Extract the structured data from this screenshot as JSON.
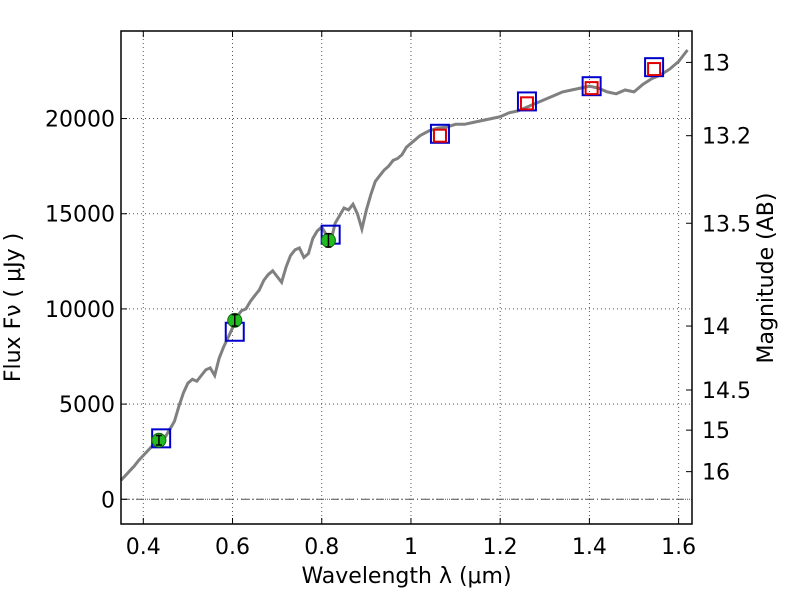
{
  "chart_data": {
    "type": "scatter",
    "xlabel": "Wavelength  λ (μm)",
    "ylabel": "Flux  Fν  ( μJy )",
    "y2label": "Magnitude (AB)",
    "xlim": [
      0.35,
      1.63
    ],
    "ylim": [
      -1300,
      24600
    ],
    "grid": true,
    "x_ticks": [
      {
        "value": 0.4,
        "label": "0.4"
      },
      {
        "value": 0.6,
        "label": "0.6"
      },
      {
        "value": 0.8,
        "label": "0.8"
      },
      {
        "value": 1.0,
        "label": "1"
      },
      {
        "value": 1.2,
        "label": "1.2"
      },
      {
        "value": 1.4,
        "label": "1.4"
      },
      {
        "value": 1.6,
        "label": "1.6"
      }
    ],
    "y_ticks": [
      {
        "value": 0,
        "label": "0"
      },
      {
        "value": 5000,
        "label": "5000"
      },
      {
        "value": 10000,
        "label": "10000"
      },
      {
        "value": 15000,
        "label": "15000"
      },
      {
        "value": 20000,
        "label": "20000"
      }
    ],
    "y2_ticks": [
      {
        "flux": 22950,
        "label": "13"
      },
      {
        "flux": 19100,
        "label": "13.2"
      },
      {
        "flux": 14500,
        "label": "13.5"
      },
      {
        "flux": 9100,
        "label": "14"
      },
      {
        "flux": 5740,
        "label": "14.5"
      },
      {
        "flux": 3630,
        "label": "15"
      },
      {
        "flux": 1450,
        "label": "16"
      }
    ],
    "zero_line": 0,
    "colors": {
      "spectrum": "#808080",
      "model_square": "#0000cc",
      "upper_square": "#e00000",
      "observed_point": "#22bb22",
      "grid": "#555555",
      "zero_line": "#555555"
    },
    "spectrum": {
      "x": [
        0.35,
        0.36,
        0.37,
        0.38,
        0.39,
        0.4,
        0.41,
        0.42,
        0.43,
        0.44,
        0.45,
        0.46,
        0.47,
        0.48,
        0.49,
        0.5,
        0.51,
        0.52,
        0.53,
        0.54,
        0.55,
        0.56,
        0.57,
        0.58,
        0.59,
        0.6,
        0.61,
        0.62,
        0.63,
        0.64,
        0.65,
        0.66,
        0.67,
        0.68,
        0.69,
        0.7,
        0.71,
        0.72,
        0.73,
        0.74,
        0.75,
        0.76,
        0.77,
        0.78,
        0.79,
        0.8,
        0.81,
        0.82,
        0.83,
        0.84,
        0.85,
        0.86,
        0.87,
        0.88,
        0.89,
        0.9,
        0.91,
        0.92,
        0.93,
        0.94,
        0.95,
        0.96,
        0.97,
        0.98,
        0.99,
        1.0,
        1.02,
        1.04,
        1.06,
        1.08,
        1.1,
        1.12,
        1.14,
        1.16,
        1.18,
        1.2,
        1.22,
        1.24,
        1.26,
        1.28,
        1.3,
        1.32,
        1.34,
        1.36,
        1.38,
        1.4,
        1.42,
        1.44,
        1.46,
        1.48,
        1.5,
        1.52,
        1.54,
        1.56,
        1.58,
        1.6,
        1.62
      ],
      "y": [
        1000,
        1250,
        1500,
        1750,
        2050,
        2300,
        2550,
        2800,
        3000,
        3150,
        3300,
        3700,
        4100,
        4900,
        5600,
        6100,
        6300,
        6200,
        6500,
        6800,
        6900,
        6500,
        7400,
        8000,
        8500,
        9000,
        9600,
        9900,
        10000,
        10400,
        10700,
        11000,
        11500,
        11800,
        12000,
        11700,
        11400,
        12200,
        12800,
        13100,
        13200,
        12700,
        12900,
        13700,
        14100,
        14300,
        13900,
        13500,
        14500,
        14900,
        15300,
        15200,
        15500,
        15000,
        14200,
        15200,
        16000,
        16700,
        17000,
        17300,
        17500,
        17800,
        17900,
        18100,
        18500,
        18700,
        19100,
        19350,
        19500,
        19550,
        19700,
        19700,
        19800,
        19900,
        20000,
        20100,
        20300,
        20400,
        20600,
        20800,
        21000,
        21200,
        21400,
        21500,
        21600,
        21700,
        21600,
        21400,
        21300,
        21500,
        21400,
        21800,
        22100,
        22300,
        22600,
        23000,
        23600
      ]
    },
    "model_squares": {
      "x": [
        0.44,
        0.605,
        0.82,
        1.065,
        1.26,
        1.405,
        1.545
      ],
      "y": [
        3200,
        8800,
        13900,
        19200,
        20900,
        21700,
        22700
      ]
    },
    "upper_limit_squares": {
      "x": [
        1.065,
        1.26,
        1.405,
        1.545
      ],
      "y": [
        19100,
        20800,
        21600,
        22600
      ]
    },
    "observed_points": {
      "x": [
        0.435,
        0.605,
        0.815
      ],
      "y": [
        3100,
        9400,
        13600
      ],
      "err": [
        250,
        300,
        350
      ]
    }
  }
}
